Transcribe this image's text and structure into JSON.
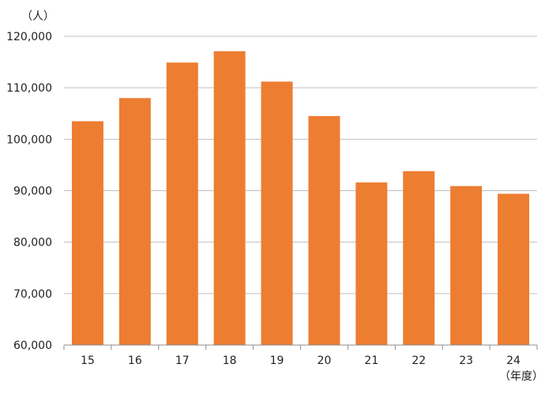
{
  "chart_data": {
    "type": "bar",
    "y_unit_label": "（人）",
    "x_unit_label": "（年度）",
    "categories": [
      "15",
      "16",
      "17",
      "18",
      "19",
      "20",
      "21",
      "22",
      "23",
      "24"
    ],
    "values": [
      103500,
      108000,
      114900,
      117100,
      111200,
      104500,
      91600,
      93800,
      90900,
      89400
    ],
    "ylim": [
      60000,
      120000
    ],
    "yticks": [
      "60,000",
      "70,000",
      "80,000",
      "90,000",
      "100,000",
      "110,000",
      "120,000"
    ],
    "grid": true,
    "colors": {
      "bar": "#ED7D31",
      "grid": "#BFBFBF",
      "axis": "#8C8C8C"
    }
  }
}
